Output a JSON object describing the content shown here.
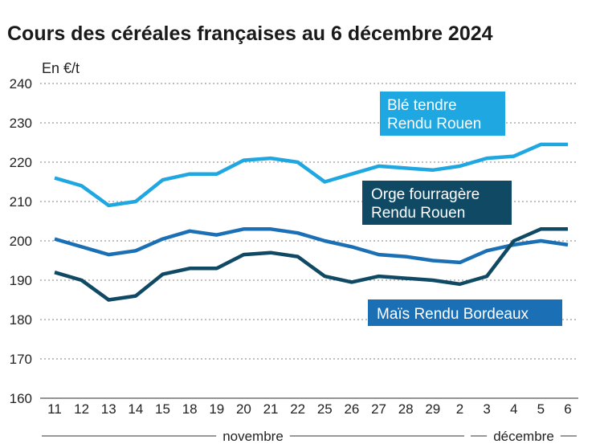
{
  "chart_data": {
    "type": "line",
    "title": "Cours des céréales françaises au 6 décembre 2024",
    "ylabel": "En €/t",
    "ylim": [
      160,
      240
    ],
    "yticks": [
      160,
      170,
      180,
      190,
      200,
      210,
      220,
      230,
      240
    ],
    "grid": true,
    "categories": [
      "11",
      "12",
      "13",
      "14",
      "15",
      "18",
      "19",
      "20",
      "21",
      "22",
      "25",
      "26",
      "27",
      "28",
      "29",
      "2",
      "3",
      "4",
      "5",
      "6"
    ],
    "month_groups": [
      {
        "label": "novembre",
        "from": 0,
        "to": 14
      },
      {
        "label": "décembre",
        "from": 15,
        "to": 19
      }
    ],
    "series": [
      {
        "name": "Blé tendre Rendu Rouen",
        "legend_lines": [
          "Blé tendre",
          "Rendu Rouen"
        ],
        "color": "#1ea7e1",
        "values": [
          216,
          214,
          209,
          210,
          215.5,
          217,
          217,
          220.5,
          221,
          220,
          215,
          217,
          219,
          218.5,
          218,
          219,
          221,
          221.5,
          224.5,
          224.5
        ]
      },
      {
        "name": "Orge fourragère Rendu Rouen",
        "legend_lines": [
          "Orge fourragère",
          "Rendu Rouen"
        ],
        "color": "#0f4964",
        "values": [
          192,
          190,
          185,
          186,
          191.5,
          193,
          193,
          196.5,
          197,
          196,
          191,
          189.5,
          191,
          190.5,
          190,
          189,
          191,
          200,
          203,
          203
        ]
      },
      {
        "name": "Maïs Rendu Bordeaux",
        "legend_lines": [
          "Maïs Rendu Bordeaux"
        ],
        "color": "#1b6fb5",
        "values": [
          200.5,
          198.5,
          196.5,
          197.5,
          200.5,
          202.5,
          201.5,
          203,
          203,
          202,
          200,
          198.5,
          196.5,
          196,
          195,
          194.5,
          197.5,
          199,
          200,
          199
        ]
      }
    ]
  }
}
